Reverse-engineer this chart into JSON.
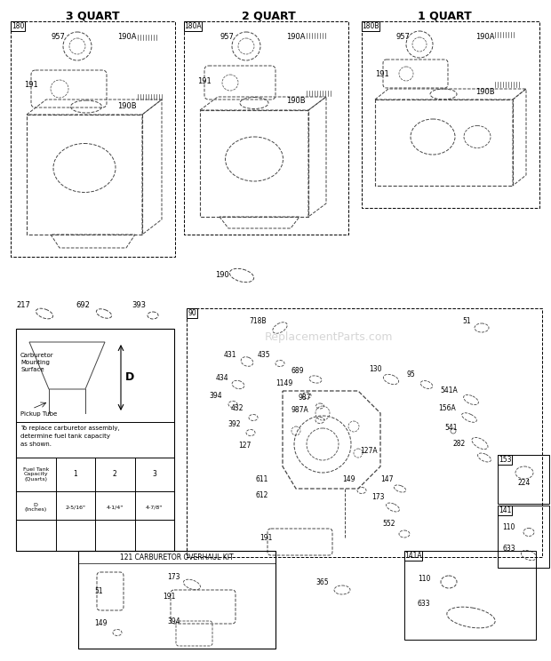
{
  "bg_color": "#ffffff",
  "page_width": 6.2,
  "page_height": 7.44,
  "title_3quart": "3 QUART",
  "title_2quart": "2 QUART",
  "title_1quart": "1 QUART",
  "watermark": "ReplacementParts.com",
  "carbkit_label": "121 CARBURETOR OVERHAUL KIT",
  "font_color": "#000000",
  "diagram_color": "#444444"
}
